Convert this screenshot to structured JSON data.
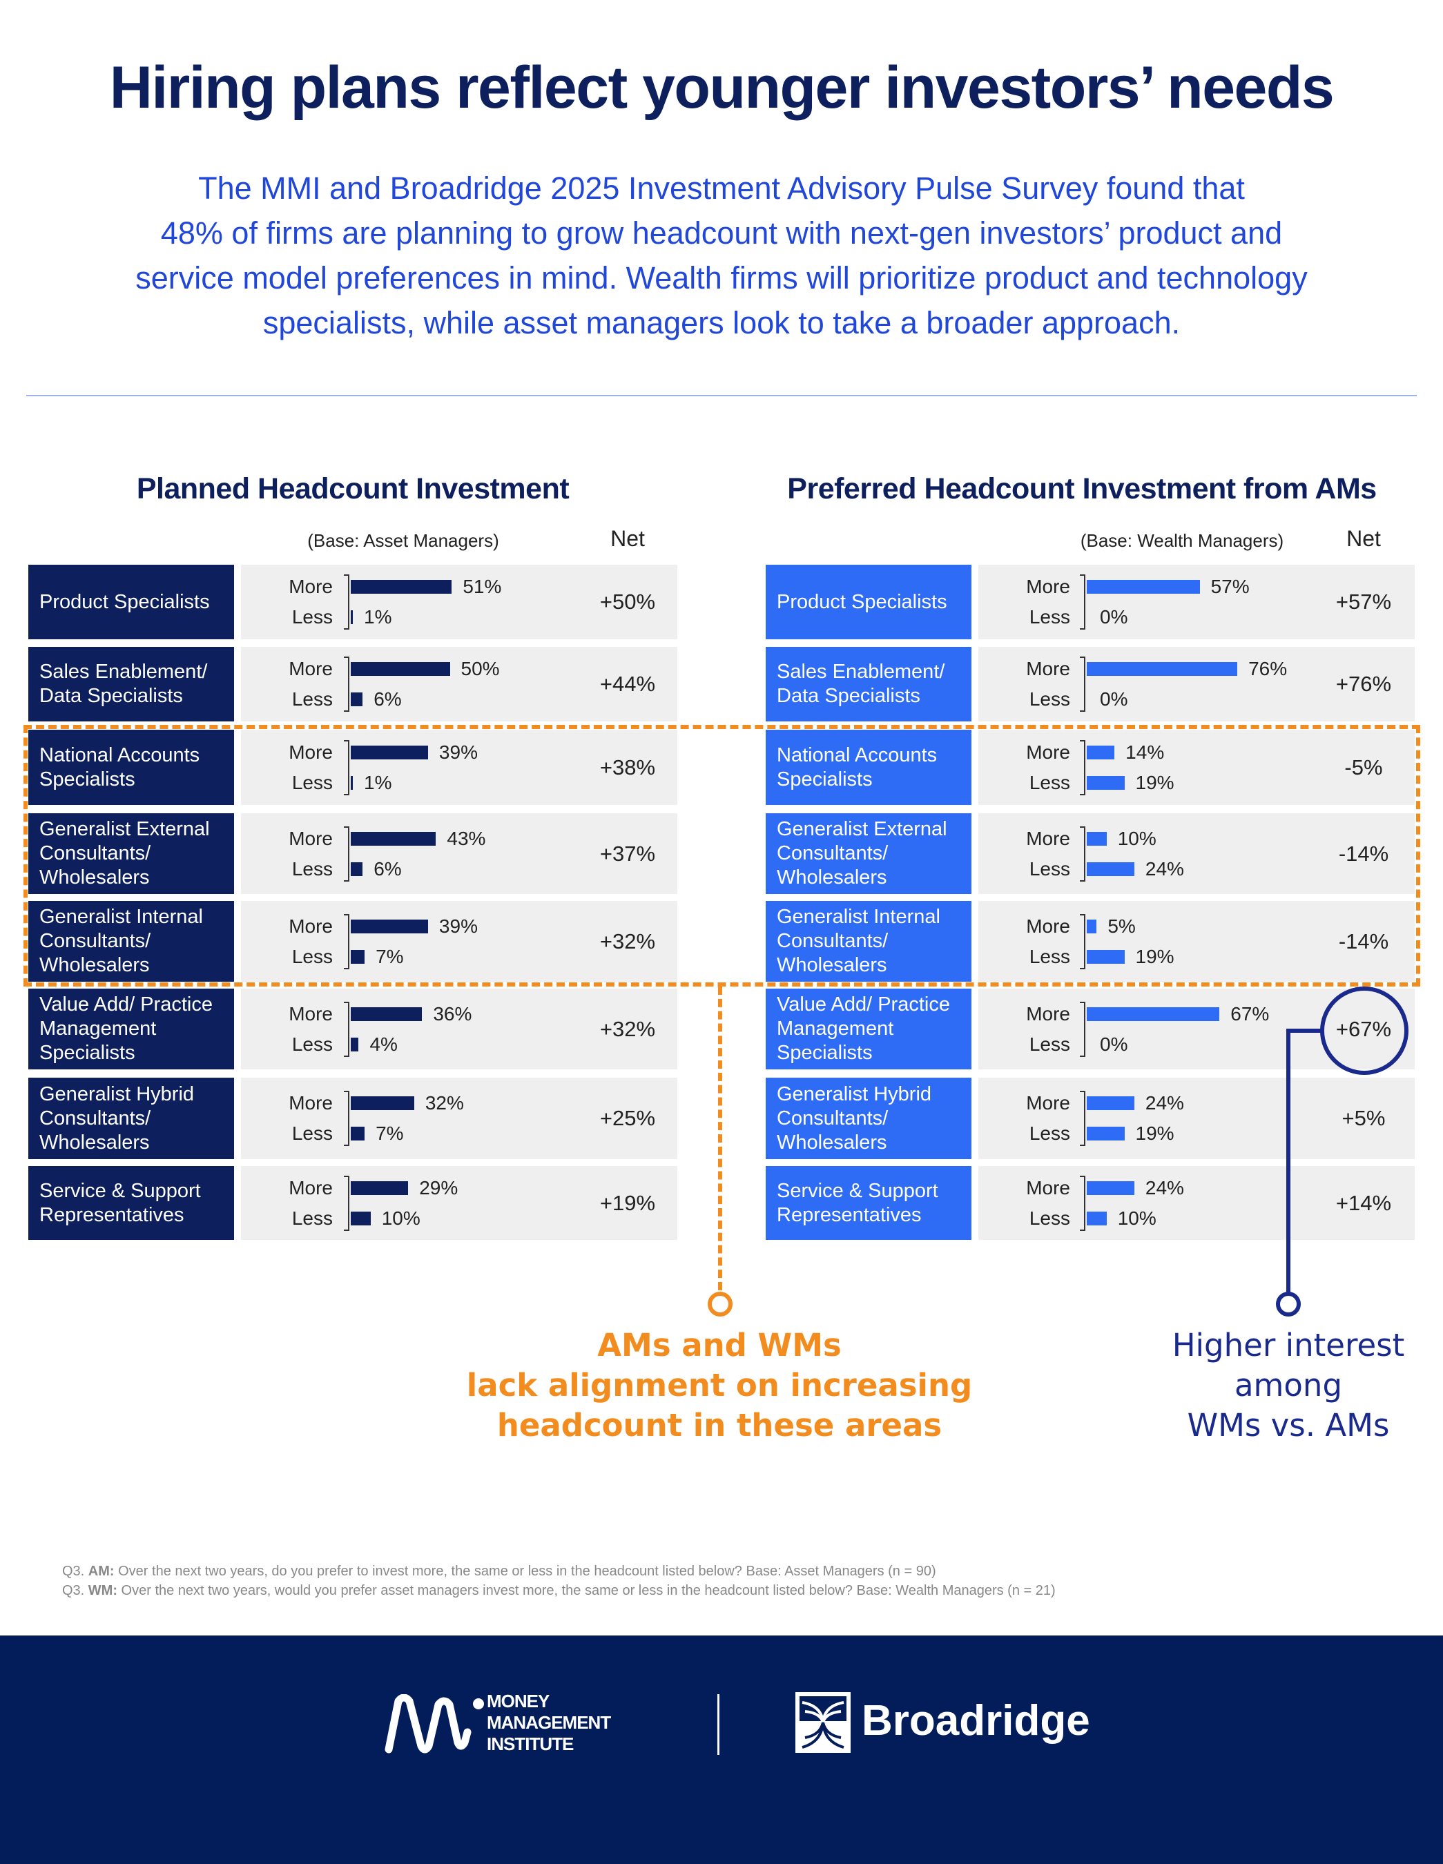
{
  "title": "Hiring plans reflect younger investors’ needs",
  "subtitle": "The MMI and Broadridge 2025 Investment Advisory Pulse Survey found that\n48% of firms are planning to grow headcount with next-gen investors’ product and\nservice model preferences in mind. Wealth firms will prioritize product and technology\nspecialists, while asset managers look to take a broader approach.",
  "colors": {
    "navy": "#0d1f5c",
    "blue": "#2f6cf6",
    "orange": "#f28c1e",
    "panel": "#efefef",
    "footer": "#021d59"
  },
  "chart_data": [
    {
      "type": "bar",
      "orientation": "horizontal",
      "title": "Planned Headcount Investment",
      "base": "(Base: Asset Managers)",
      "net_label": "Net",
      "more_label": "More",
      "less_label": "Less",
      "categories": [
        "Product Specialists",
        "Sales Enablement/\nData Specialists",
        "National Accounts\nSpecialists",
        "Generalist External\nConsultants/\nWholesalers",
        "Generalist Internal\nConsultants/\nWholesalers",
        "Value Add/ Practice\nManagement\nSpecialists",
        "Generalist Hybrid\nConsultants/\nWholesalers",
        "Service & Support\nRepresentatives"
      ],
      "series": [
        {
          "name": "More",
          "values": [
            51,
            50,
            39,
            43,
            39,
            36,
            32,
            29
          ]
        },
        {
          "name": "Less",
          "values": [
            1,
            6,
            1,
            6,
            7,
            4,
            7,
            10
          ]
        }
      ],
      "net": [
        "+50%",
        "+44%",
        "+38%",
        "+37%",
        "+32%",
        "+32%",
        "+25%",
        "+19%"
      ],
      "unit": "%",
      "color": "#0d1f5c"
    },
    {
      "type": "bar",
      "orientation": "horizontal",
      "title": "Preferred Headcount Investment from AMs",
      "base": "(Base: Wealth Managers)",
      "net_label": "Net",
      "more_label": "More",
      "less_label": "Less",
      "categories": [
        "Product Specialists",
        "Sales Enablement/\nData Specialists",
        "National Accounts\nSpecialists",
        "Generalist External\nConsultants/\nWholesalers",
        "Generalist Internal\nConsultants/\nWholesalers",
        "Value Add/ Practice\nManagement\nSpecialists",
        "Generalist Hybrid\nConsultants/\nWholesalers",
        "Service & Support\nRepresentatives"
      ],
      "series": [
        {
          "name": "More",
          "values": [
            57,
            76,
            14,
            10,
            5,
            67,
            24,
            24
          ]
        },
        {
          "name": "Less",
          "values": [
            0,
            0,
            19,
            24,
            19,
            0,
            19,
            10
          ]
        }
      ],
      "net": [
        "+57%",
        "+76%",
        "-5%",
        "-14%",
        "-14%",
        "+67%",
        "+5%",
        "+14%"
      ],
      "unit": "%",
      "color": "#2f6cf6"
    }
  ],
  "callouts": {
    "orange": "AMs and WMs\nlack alignment on increasing\nheadcount in these areas",
    "navy": "Higher interest\namong\nWMs vs. AMs"
  },
  "footnote": {
    "am_prefix": "Q3. ",
    "am_tag": "AM:",
    "am_text": " Over the next two years, do you prefer to invest more, the same or less in the headcount listed below? Base: Asset Managers (n = 90)",
    "wm_prefix": "Q3. ",
    "wm_tag": "WM:",
    "wm_text": " Over the next two years, would you prefer asset managers invest more, the same or less in the headcount listed below? Base: Wealth Managers (n = 21)"
  },
  "footer": {
    "mmi_logo": "MONEY\nMANAGEMENT\nINSTITUTE",
    "broadridge_logo": "Broadridge"
  }
}
